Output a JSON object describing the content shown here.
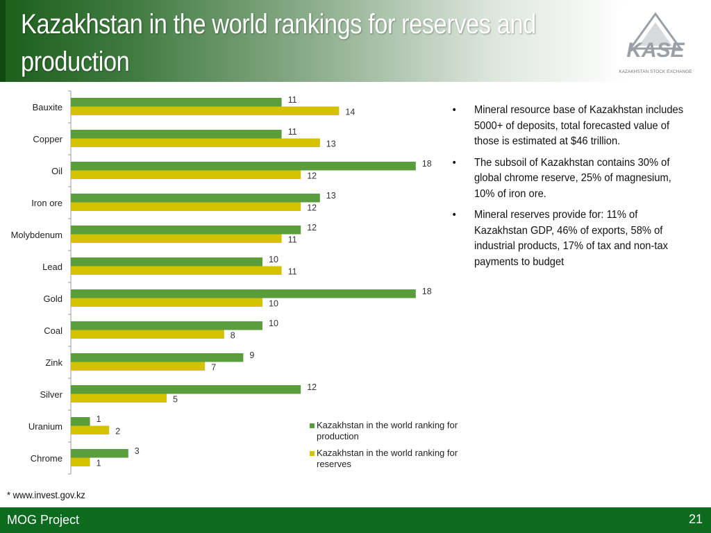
{
  "title": "Kazakhstan in the world rankings for reserves and production",
  "logo": {
    "name": "KASE",
    "subtitle": "KAZAKHSTAN STOCK EXCHANGE"
  },
  "colors": {
    "production": "#5a9e3c",
    "reserves": "#d4c100",
    "footer": "#0d6b1f"
  },
  "chart_data": {
    "type": "bar",
    "orientation": "horizontal",
    "categories": [
      "Bauxite",
      "Copper",
      "Oil",
      "Iron ore",
      "Molybdenum",
      "Lead",
      "Gold",
      "Coal",
      "Zink",
      "Silver",
      "Uranium",
      "Chrome"
    ],
    "series": [
      {
        "name": "Kazakhstan in the world ranking for production",
        "values": [
          11,
          11,
          18,
          13,
          12,
          10,
          18,
          10,
          9,
          12,
          1,
          3
        ]
      },
      {
        "name": "Kazakhstan in the world ranking for reserves",
        "values": [
          14,
          13,
          12,
          12,
          11,
          11,
          10,
          8,
          7,
          5,
          2,
          1
        ]
      }
    ],
    "xlim": [
      0,
      20
    ],
    "grid": false,
    "legend_position": "bottom-right",
    "data_labels": true
  },
  "legend": [
    {
      "label": "Kazakhstan in the world ranking for production"
    },
    {
      "label": "Kazakhstan in the world ranking for reserves"
    }
  ],
  "bullets": [
    "Mineral resource base of Kazakhstan includes 5000+ of deposits, total forecasted value of those is estimated at $46 trillion.",
    "The subsoil of Kazakhstan contains 30% of global chrome reserve, 25% of magnesium, 10% of iron ore.",
    "Mineral reserves provide for: 11% of Kazakhstan GDP, 46% of exports, 58% of industrial products, 17% of tax and non-tax payments to budget"
  ],
  "bullet_symbol": "•",
  "source": "* www.invest.gov.kz",
  "footer": {
    "project": "MOG Project",
    "page": "21"
  }
}
